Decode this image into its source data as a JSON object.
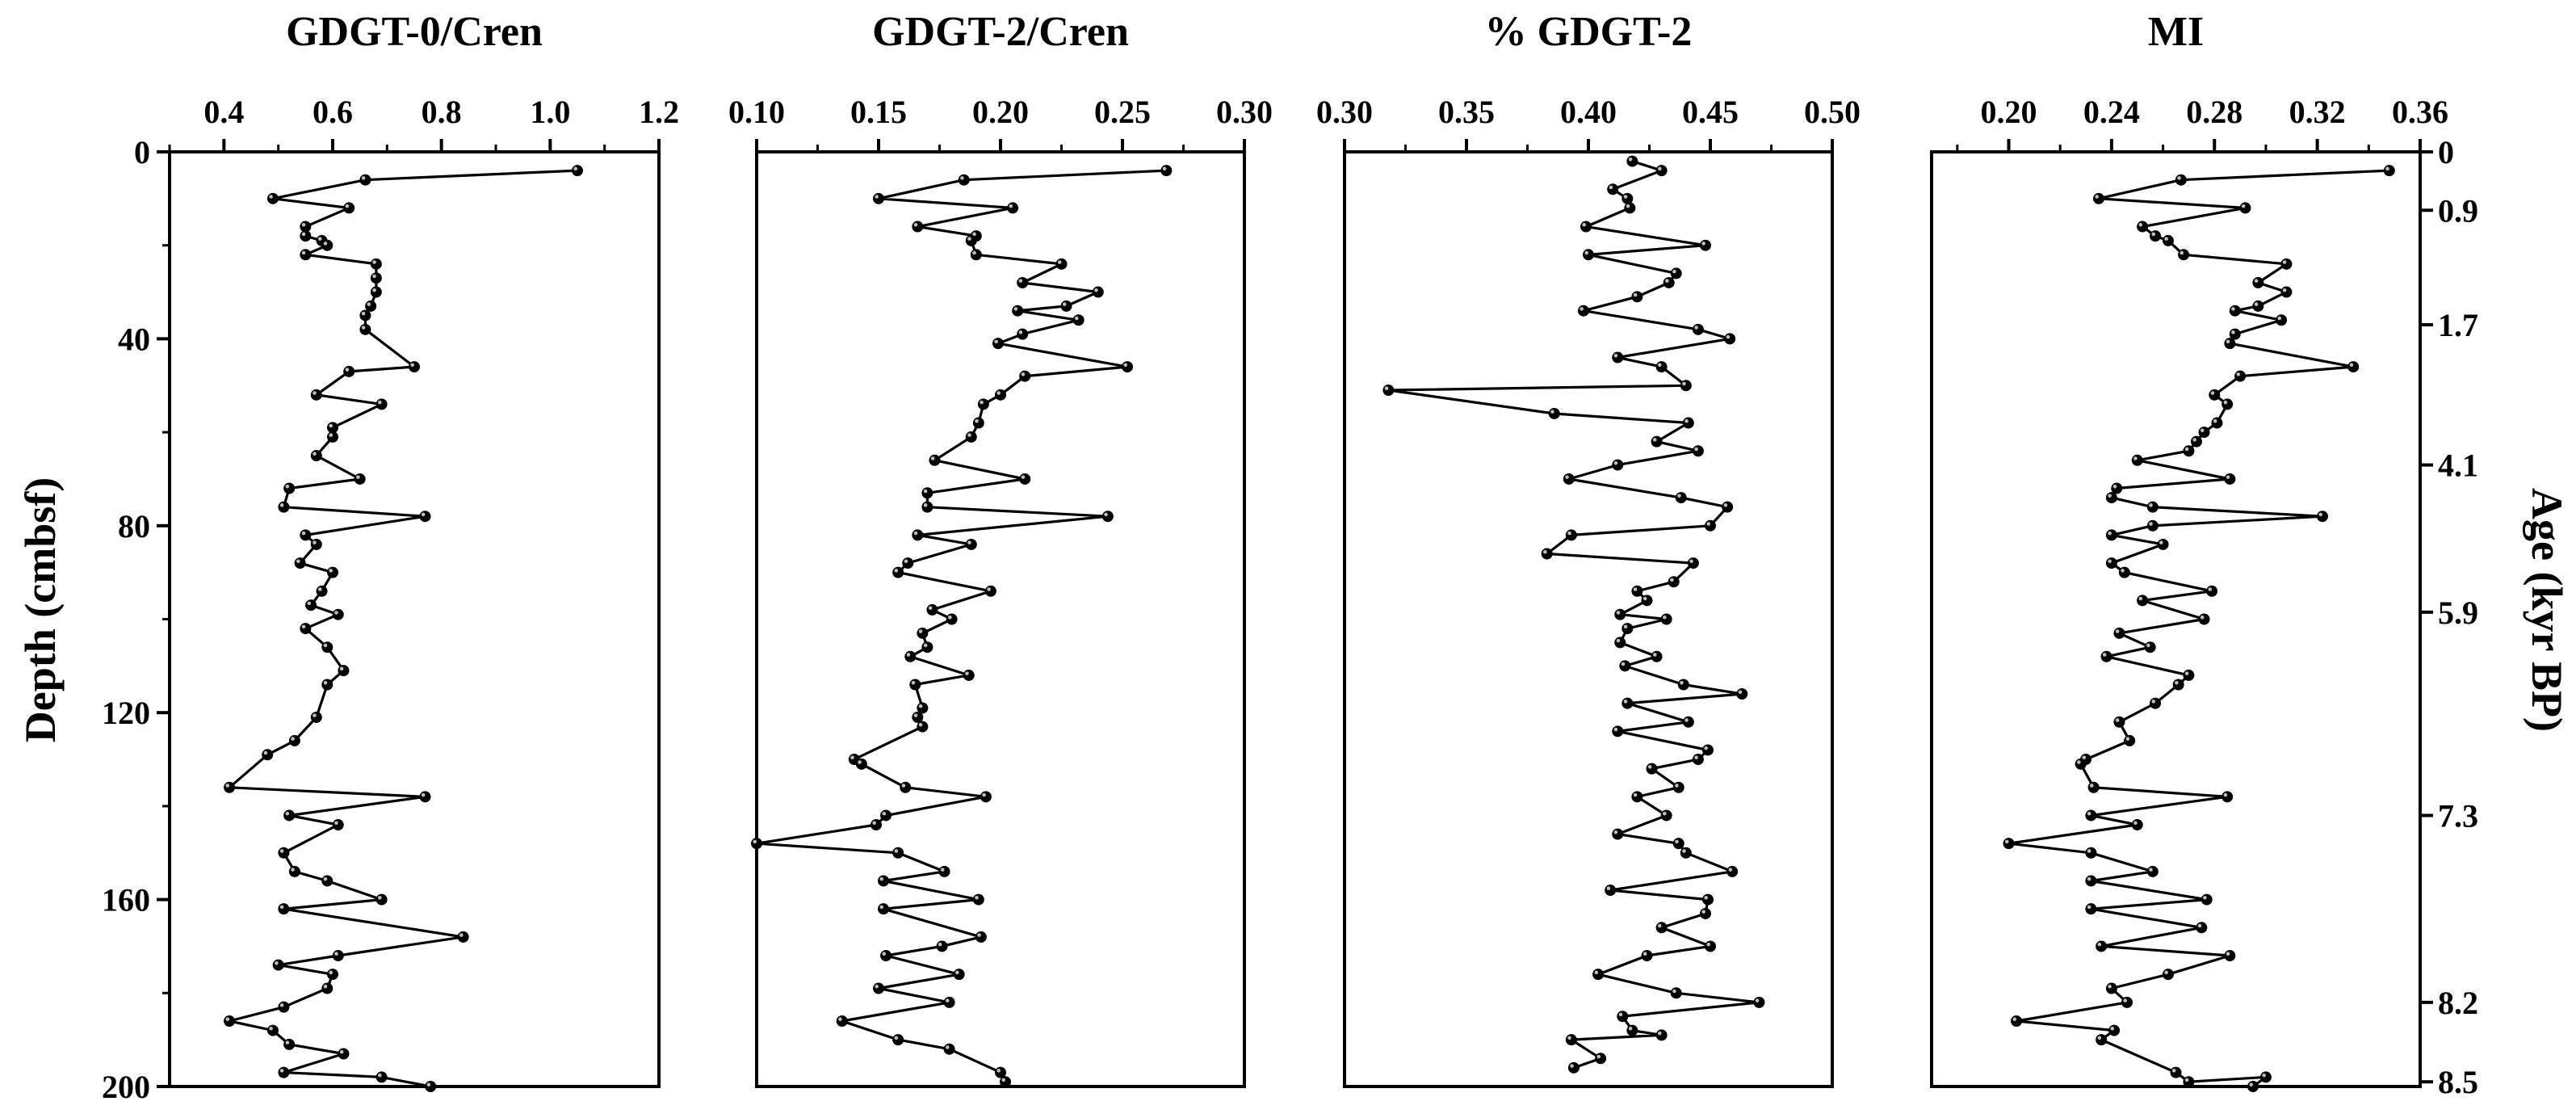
{
  "figure": {
    "ylabel": "Depth (cmbsf)",
    "right_axis_label": "Age (kyr BP)"
  },
  "chart_data": [
    {
      "type": "line",
      "title": "GDGT-0/Cren",
      "xlim": [
        0.3,
        1.2
      ],
      "x_ticks": [
        "0.4",
        "0.6",
        "0.8",
        "1.0",
        "1.2"
      ],
      "x_tick_values": [
        0.4,
        0.6,
        0.8,
        1.0,
        1.2
      ],
      "ylim": [
        0,
        200
      ],
      "y_ticks": [
        "0",
        "40",
        "80",
        "120",
        "160",
        "200"
      ],
      "y_tick_values": [
        0,
        40,
        80,
        120,
        160,
        200
      ],
      "marker": "circle",
      "points": [
        [
          1.05,
          4
        ],
        [
          0.66,
          6
        ],
        [
          0.49,
          10
        ],
        [
          0.63,
          12
        ],
        [
          0.55,
          16
        ],
        [
          0.55,
          18
        ],
        [
          0.58,
          19
        ],
        [
          0.59,
          20
        ],
        [
          0.55,
          22
        ],
        [
          0.68,
          24
        ],
        [
          0.68,
          27
        ],
        [
          0.68,
          30
        ],
        [
          0.67,
          33
        ],
        [
          0.66,
          35
        ],
        [
          0.66,
          38
        ],
        [
          0.75,
          46
        ],
        [
          0.63,
          47
        ],
        [
          0.57,
          52
        ],
        [
          0.69,
          54
        ],
        [
          0.6,
          59
        ],
        [
          0.6,
          61
        ],
        [
          0.57,
          65
        ],
        [
          0.65,
          70
        ],
        [
          0.52,
          72
        ],
        [
          0.51,
          76
        ],
        [
          0.77,
          78
        ],
        [
          0.55,
          82
        ],
        [
          0.57,
          84
        ],
        [
          0.54,
          88
        ],
        [
          0.6,
          90
        ],
        [
          0.58,
          94
        ],
        [
          0.56,
          97
        ],
        [
          0.61,
          99
        ],
        [
          0.55,
          102
        ],
        [
          0.59,
          106
        ],
        [
          0.62,
          111
        ],
        [
          0.59,
          114
        ],
        [
          0.57,
          121
        ],
        [
          0.53,
          126
        ],
        [
          0.48,
          129
        ],
        [
          0.41,
          136
        ],
        [
          0.77,
          138
        ],
        [
          0.52,
          142
        ],
        [
          0.61,
          144
        ],
        [
          0.51,
          150
        ],
        [
          0.53,
          154
        ],
        [
          0.59,
          156
        ],
        [
          0.69,
          160
        ],
        [
          0.51,
          162
        ],
        [
          0.84,
          168
        ],
        [
          0.61,
          172
        ],
        [
          0.5,
          174
        ],
        [
          0.6,
          176
        ],
        [
          0.59,
          179
        ],
        [
          0.51,
          183
        ],
        [
          0.41,
          186
        ],
        [
          0.49,
          188
        ],
        [
          0.52,
          191
        ],
        [
          0.62,
          193
        ],
        [
          0.51,
          197
        ],
        [
          0.69,
          198
        ],
        [
          0.78,
          200
        ]
      ]
    },
    {
      "type": "line",
      "title": "GDGT-2/Cren",
      "xlim": [
        0.1,
        0.3
      ],
      "x_ticks": [
        "0.10",
        "0.15",
        "0.20",
        "0.25",
        "0.30"
      ],
      "x_tick_values": [
        0.1,
        0.15,
        0.2,
        0.25,
        0.3
      ],
      "ylim": [
        0,
        200
      ],
      "marker": "circle",
      "points": [
        [
          0.268,
          4
        ],
        [
          0.185,
          6
        ],
        [
          0.15,
          10
        ],
        [
          0.205,
          12
        ],
        [
          0.166,
          16
        ],
        [
          0.19,
          18
        ],
        [
          0.188,
          19
        ],
        [
          0.19,
          22
        ],
        [
          0.225,
          24
        ],
        [
          0.209,
          28
        ],
        [
          0.24,
          30
        ],
        [
          0.227,
          33
        ],
        [
          0.207,
          34
        ],
        [
          0.232,
          36
        ],
        [
          0.209,
          39
        ],
        [
          0.199,
          41
        ],
        [
          0.252,
          46
        ],
        [
          0.21,
          48
        ],
        [
          0.2,
          52
        ],
        [
          0.193,
          54
        ],
        [
          0.191,
          58
        ],
        [
          0.188,
          61
        ],
        [
          0.173,
          66
        ],
        [
          0.21,
          70
        ],
        [
          0.17,
          73
        ],
        [
          0.17,
          76
        ],
        [
          0.244,
          78
        ],
        [
          0.166,
          82
        ],
        [
          0.188,
          84
        ],
        [
          0.162,
          88
        ],
        [
          0.158,
          90
        ],
        [
          0.196,
          94
        ],
        [
          0.172,
          98
        ],
        [
          0.18,
          100
        ],
        [
          0.168,
          103
        ],
        [
          0.17,
          106
        ],
        [
          0.163,
          108
        ],
        [
          0.187,
          112
        ],
        [
          0.165,
          114
        ],
        [
          0.168,
          119
        ],
        [
          0.166,
          121
        ],
        [
          0.168,
          123
        ],
        [
          0.14,
          130
        ],
        [
          0.143,
          131
        ],
        [
          0.161,
          136
        ],
        [
          0.194,
          138
        ],
        [
          0.153,
          142
        ],
        [
          0.149,
          144
        ],
        [
          0.1,
          148
        ],
        [
          0.158,
          150
        ],
        [
          0.177,
          154
        ],
        [
          0.152,
          156
        ],
        [
          0.191,
          160
        ],
        [
          0.152,
          162
        ],
        [
          0.192,
          168
        ],
        [
          0.176,
          170
        ],
        [
          0.153,
          172
        ],
        [
          0.183,
          176
        ],
        [
          0.15,
          179
        ],
        [
          0.179,
          182
        ],
        [
          0.135,
          186
        ],
        [
          0.158,
          190
        ],
        [
          0.179,
          192
        ],
        [
          0.2,
          197
        ],
        [
          0.202,
          199
        ]
      ]
    },
    {
      "type": "line",
      "title": "% GDGT-2",
      "xlim": [
        0.3,
        0.5
      ],
      "x_ticks": [
        "0.30",
        "0.35",
        "0.40",
        "0.45",
        "0.50"
      ],
      "x_tick_values": [
        0.3,
        0.35,
        0.4,
        0.45,
        0.5
      ],
      "ylim": [
        0,
        200
      ],
      "marker": "circle",
      "points": [
        [
          0.418,
          2
        ],
        [
          0.43,
          4
        ],
        [
          0.41,
          8
        ],
        [
          0.416,
          10
        ],
        [
          0.417,
          12
        ],
        [
          0.399,
          16
        ],
        [
          0.448,
          20
        ],
        [
          0.4,
          22
        ],
        [
          0.436,
          26
        ],
        [
          0.433,
          28
        ],
        [
          0.42,
          31
        ],
        [
          0.398,
          34
        ],
        [
          0.445,
          38
        ],
        [
          0.458,
          40
        ],
        [
          0.412,
          44
        ],
        [
          0.43,
          46
        ],
        [
          0.44,
          50
        ],
        [
          0.318,
          51
        ],
        [
          0.386,
          56
        ],
        [
          0.441,
          58
        ],
        [
          0.428,
          62
        ],
        [
          0.445,
          64
        ],
        [
          0.412,
          67
        ],
        [
          0.392,
          70
        ],
        [
          0.438,
          74
        ],
        [
          0.457,
          76
        ],
        [
          0.45,
          80
        ],
        [
          0.393,
          82
        ],
        [
          0.383,
          86
        ],
        [
          0.443,
          88
        ],
        [
          0.435,
          92
        ],
        [
          0.42,
          94
        ],
        [
          0.424,
          96
        ],
        [
          0.413,
          99
        ],
        [
          0.432,
          100
        ],
        [
          0.416,
          102
        ],
        [
          0.413,
          105
        ],
        [
          0.428,
          108
        ],
        [
          0.415,
          110
        ],
        [
          0.439,
          114
        ],
        [
          0.463,
          116
        ],
        [
          0.416,
          118
        ],
        [
          0.441,
          122
        ],
        [
          0.412,
          124
        ],
        [
          0.449,
          128
        ],
        [
          0.445,
          130
        ],
        [
          0.426,
          132
        ],
        [
          0.437,
          136
        ],
        [
          0.42,
          138
        ],
        [
          0.432,
          142
        ],
        [
          0.412,
          146
        ],
        [
          0.437,
          148
        ],
        [
          0.44,
          150
        ],
        [
          0.459,
          154
        ],
        [
          0.409,
          158
        ],
        [
          0.449,
          160
        ],
        [
          0.448,
          163
        ],
        [
          0.43,
          166
        ],
        [
          0.45,
          170
        ],
        [
          0.424,
          172
        ],
        [
          0.404,
          176
        ],
        [
          0.436,
          180
        ],
        [
          0.47,
          182
        ],
        [
          0.414,
          185
        ],
        [
          0.418,
          188
        ],
        [
          0.43,
          189
        ],
        [
          0.393,
          190
        ],
        [
          0.405,
          194
        ],
        [
          0.394,
          196
        ]
      ]
    },
    {
      "type": "line",
      "title": "MI",
      "xlim": [
        0.17,
        0.36
      ],
      "x_ticks": [
        "0.20",
        "0.24",
        "0.28",
        "0.32",
        "0.36"
      ],
      "x_tick_values": [
        0.2,
        0.24,
        0.28,
        0.32,
        0.36
      ],
      "ylim": [
        0,
        200
      ],
      "right_axis_ticks": [
        "0",
        "0.9",
        "1.7",
        "4.1",
        "5.9",
        "7.3",
        "8.2",
        "8.5"
      ],
      "right_axis_tick_depths": [
        0,
        12.5,
        37,
        67,
        98.5,
        142,
        182,
        199
      ],
      "marker": "circle",
      "points": [
        [
          0.348,
          4
        ],
        [
          0.267,
          6
        ],
        [
          0.235,
          10
        ],
        [
          0.292,
          12
        ],
        [
          0.252,
          16
        ],
        [
          0.257,
          18
        ],
        [
          0.262,
          19
        ],
        [
          0.268,
          22
        ],
        [
          0.308,
          24
        ],
        [
          0.297,
          28
        ],
        [
          0.308,
          30
        ],
        [
          0.297,
          33
        ],
        [
          0.288,
          34
        ],
        [
          0.306,
          36
        ],
        [
          0.288,
          39
        ],
        [
          0.286,
          41
        ],
        [
          0.334,
          46
        ],
        [
          0.29,
          48
        ],
        [
          0.28,
          52
        ],
        [
          0.285,
          54
        ],
        [
          0.281,
          58
        ],
        [
          0.276,
          60
        ],
        [
          0.273,
          62
        ],
        [
          0.27,
          64
        ],
        [
          0.25,
          66
        ],
        [
          0.286,
          70
        ],
        [
          0.242,
          72
        ],
        [
          0.24,
          74
        ],
        [
          0.256,
          76
        ],
        [
          0.322,
          78
        ],
        [
          0.256,
          80
        ],
        [
          0.24,
          82
        ],
        [
          0.26,
          84
        ],
        [
          0.24,
          88
        ],
        [
          0.245,
          90
        ],
        [
          0.279,
          94
        ],
        [
          0.252,
          96
        ],
        [
          0.276,
          100
        ],
        [
          0.243,
          103
        ],
        [
          0.255,
          106
        ],
        [
          0.238,
          108
        ],
        [
          0.27,
          112
        ],
        [
          0.266,
          114
        ],
        [
          0.257,
          118
        ],
        [
          0.243,
          122
        ],
        [
          0.247,
          126
        ],
        [
          0.23,
          130
        ],
        [
          0.228,
          131
        ],
        [
          0.233,
          136
        ],
        [
          0.285,
          138
        ],
        [
          0.232,
          142
        ],
        [
          0.25,
          144
        ],
        [
          0.2,
          148
        ],
        [
          0.232,
          150
        ],
        [
          0.256,
          154
        ],
        [
          0.232,
          156
        ],
        [
          0.277,
          160
        ],
        [
          0.232,
          162
        ],
        [
          0.275,
          166
        ],
        [
          0.236,
          170
        ],
        [
          0.286,
          172
        ],
        [
          0.262,
          176
        ],
        [
          0.24,
          179
        ],
        [
          0.246,
          182
        ],
        [
          0.203,
          186
        ],
        [
          0.241,
          188
        ],
        [
          0.236,
          190
        ],
        [
          0.265,
          197
        ],
        [
          0.27,
          199
        ],
        [
          0.3,
          198
        ],
        [
          0.295,
          200
        ]
      ]
    }
  ]
}
